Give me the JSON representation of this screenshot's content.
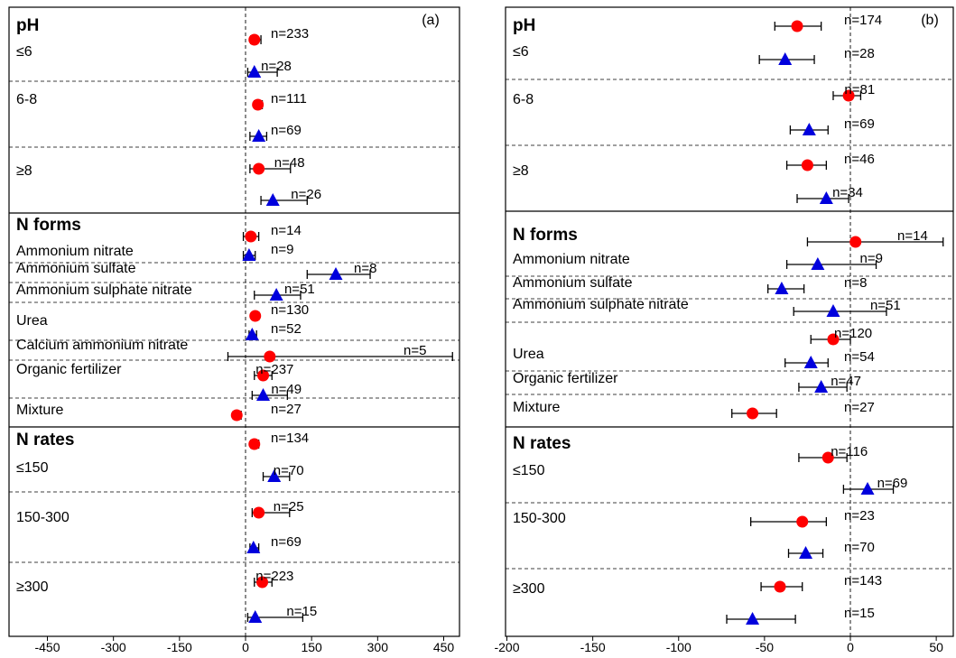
{
  "chart_data": [
    {
      "type": "scatter",
      "subtype": "forest-plot",
      "panel_label": "(a)",
      "x_ticks": [
        -450,
        -300,
        -150,
        0,
        150,
        300,
        450
      ],
      "xlim": [
        -500,
        500
      ],
      "colors": {
        "circle": "#ff0000",
        "triangle": "#0000dd"
      },
      "groups": [
        {
          "title": "pH",
          "subgroups": [
            {
              "label": "≤6",
              "rows": [
                {
                  "marker": "circle",
                  "value": 20,
                  "ci": [
                    12,
                    35
                  ],
                  "n": "n=233"
                },
                {
                  "marker": "triangle",
                  "value": 20,
                  "ci": [
                    5,
                    72
                  ],
                  "n": "n=28"
                }
              ]
            },
            {
              "label": "6-8",
              "rows": [
                {
                  "marker": "circle",
                  "value": 28,
                  "ci": [
                    20,
                    38
                  ],
                  "n": "n=111"
                },
                {
                  "marker": "triangle",
                  "value": 30,
                  "ci": [
                    10,
                    48
                  ],
                  "n": "n=69"
                }
              ]
            },
            {
              "label": "≥8",
              "rows": [
                {
                  "marker": "circle",
                  "value": 30,
                  "ci": [
                    10,
                    102
                  ],
                  "n": "n=48"
                },
                {
                  "marker": "triangle",
                  "value": 62,
                  "ci": [
                    35,
                    140
                  ],
                  "n": "n=26"
                }
              ]
            }
          ]
        },
        {
          "title": "N forms",
          "subgroups": [
            {
              "label": "Ammonium nitrate",
              "rows": [
                {
                  "marker": "circle",
                  "value": 12,
                  "ci": [
                    -5,
                    30
                  ],
                  "n": "n=14"
                },
                {
                  "marker": "triangle",
                  "value": 8,
                  "ci": [
                    -5,
                    22
                  ],
                  "n": "n=9"
                }
              ]
            },
            {
              "label": "Ammonium sulfate",
              "rows": [
                {
                  "marker": "triangle",
                  "value": 205,
                  "ci": [
                    140,
                    283
                  ],
                  "n": "n=8"
                }
              ]
            },
            {
              "label": "Ammonium sulphate nitrate",
              "rows": [
                {
                  "marker": "triangle",
                  "value": 70,
                  "ci": [
                    20,
                    125
                  ],
                  "n": "n=51"
                }
              ]
            },
            {
              "label": "Urea",
              "rows": [
                {
                  "marker": "circle",
                  "value": 22,
                  "ci": [
                    15,
                    30
                  ],
                  "n": "n=130"
                },
                {
                  "marker": "triangle",
                  "value": 15,
                  "ci": [
                    8,
                    25
                  ],
                  "n": "n=52"
                }
              ]
            },
            {
              "label": "Calcium ammonium nitrate",
              "rows": [
                {
                  "marker": "circle",
                  "value": 55,
                  "ci": [
                    -40,
                    470
                  ],
                  "n": "n=5"
                }
              ]
            },
            {
              "label": "Organic fertilizer",
              "rows": [
                {
                  "marker": "circle",
                  "value": 40,
                  "ci": [
                    20,
                    60
                  ],
                  "n": "n=237"
                },
                {
                  "marker": "triangle",
                  "value": 40,
                  "ci": [
                    15,
                    95
                  ],
                  "n": "n=49"
                }
              ]
            },
            {
              "label": "Mixture",
              "rows": [
                {
                  "marker": "circle",
                  "value": -20,
                  "ci": [
                    -28,
                    -10
                  ],
                  "n": "n=27"
                }
              ]
            }
          ]
        },
        {
          "title": "N rates",
          "subgroups": [
            {
              "label": "≤150",
              "rows": [
                {
                  "marker": "circle",
                  "value": 20,
                  "ci": [
                    12,
                    30
                  ],
                  "n": "n=134"
                },
                {
                  "marker": "triangle",
                  "value": 65,
                  "ci": [
                    40,
                    100
                  ],
                  "n": "n=70"
                }
              ]
            },
            {
              "label": "150-300",
              "rows": [
                {
                  "marker": "circle",
                  "value": 30,
                  "ci": [
                    15,
                    100
                  ],
                  "n": "n=25"
                },
                {
                  "marker": "triangle",
                  "value": 18,
                  "ci": [
                    10,
                    30
                  ],
                  "n": "n=69"
                }
              ]
            },
            {
              "label": "≥300",
              "rows": [
                {
                  "marker": "circle",
                  "value": 38,
                  "ci": [
                    20,
                    60
                  ],
                  "n": "n=223"
                },
                {
                  "marker": "triangle",
                  "value": 22,
                  "ci": [
                    5,
                    130
                  ],
                  "n": "n=15"
                }
              ]
            }
          ]
        }
      ]
    },
    {
      "type": "scatter",
      "subtype": "forest-plot",
      "panel_label": "(b)",
      "x_ticks": [
        -200,
        -150,
        -100,
        -50,
        0,
        50
      ],
      "xlim": [
        -200,
        57
      ],
      "colors": {
        "circle": "#ff0000",
        "triangle": "#0000dd"
      },
      "groups": [
        {
          "title": "pH",
          "subgroups": [
            {
              "label": "≤6",
              "rows": [
                {
                  "marker": "circle",
                  "value": -31,
                  "ci": [
                    -44,
                    -17
                  ],
                  "n": "n=174"
                },
                {
                  "marker": "triangle",
                  "value": -38,
                  "ci": [
                    -53,
                    -21
                  ],
                  "n": "n=28"
                }
              ]
            },
            {
              "label": "6-8",
              "rows": [
                {
                  "marker": "circle",
                  "value": -1,
                  "ci": [
                    -10,
                    6
                  ],
                  "n": "n=81"
                },
                {
                  "marker": "triangle",
                  "value": -24,
                  "ci": [
                    -35,
                    -13
                  ],
                  "n": "n=69"
                }
              ]
            },
            {
              "label": "≥8",
              "rows": [
                {
                  "marker": "circle",
                  "value": -25,
                  "ci": [
                    -37,
                    -14
                  ],
                  "n": "n=46"
                },
                {
                  "marker": "triangle",
                  "value": -14,
                  "ci": [
                    -31,
                    -1
                  ],
                  "n": "n=34"
                }
              ]
            }
          ]
        },
        {
          "title": "N forms",
          "subgroups": [
            {
              "label": "Ammonium nitrate",
              "rows": [
                {
                  "marker": "circle",
                  "value": 3,
                  "ci": [
                    -25,
                    54
                  ],
                  "n": "n=14"
                },
                {
                  "marker": "triangle",
                  "value": -19,
                  "ci": [
                    -37,
                    15
                  ],
                  "n": "n=9"
                }
              ]
            },
            {
              "label": "Ammonium sulfate",
              "rows": [
                {
                  "marker": "triangle",
                  "value": -40,
                  "ci": [
                    -48,
                    -27
                  ],
                  "n": "n=8"
                }
              ]
            },
            {
              "label": "Ammonium sulphate nitrate",
              "rows": [
                {
                  "marker": "triangle",
                  "value": -10,
                  "ci": [
                    -33,
                    21
                  ],
                  "n": "n=51"
                }
              ]
            },
            {
              "label": "Urea",
              "rows": [
                {
                  "marker": "circle",
                  "value": -10,
                  "ci": [
                    -23,
                    0
                  ],
                  "n": "n=120"
                },
                {
                  "marker": "triangle",
                  "value": -23,
                  "ci": [
                    -38,
                    -13
                  ],
                  "n": "n=54"
                }
              ]
            },
            {
              "label": "Organic fertilizer",
              "rows": [
                {
                  "marker": "triangle",
                  "value": -17,
                  "ci": [
                    -30,
                    -2
                  ],
                  "n": "n=47"
                }
              ]
            },
            {
              "label": "Mixture",
              "rows": [
                {
                  "marker": "circle",
                  "value": -57,
                  "ci": [
                    -69,
                    -43
                  ],
                  "n": "n=27"
                }
              ]
            }
          ]
        },
        {
          "title": "N rates",
          "subgroups": [
            {
              "label": "≤150",
              "rows": [
                {
                  "marker": "circle",
                  "value": -13,
                  "ci": [
                    -30,
                    -2
                  ],
                  "n": "n=116"
                },
                {
                  "marker": "triangle",
                  "value": 10,
                  "ci": [
                    -4,
                    25
                  ],
                  "n": "n=69"
                }
              ]
            },
            {
              "label": "150-300",
              "rows": [
                {
                  "marker": "circle",
                  "value": -28,
                  "ci": [
                    -58,
                    -14
                  ],
                  "n": "n=23"
                },
                {
                  "marker": "triangle",
                  "value": -26,
                  "ci": [
                    -36,
                    -16
                  ],
                  "n": "n=70"
                }
              ]
            },
            {
              "label": "≥300",
              "rows": [
                {
                  "marker": "circle",
                  "value": -41,
                  "ci": [
                    -52,
                    -28
                  ],
                  "n": "n=143"
                },
                {
                  "marker": "triangle",
                  "value": -57,
                  "ci": [
                    -72,
                    -32
                  ],
                  "n": "n=15"
                }
              ]
            }
          ]
        }
      ]
    }
  ]
}
